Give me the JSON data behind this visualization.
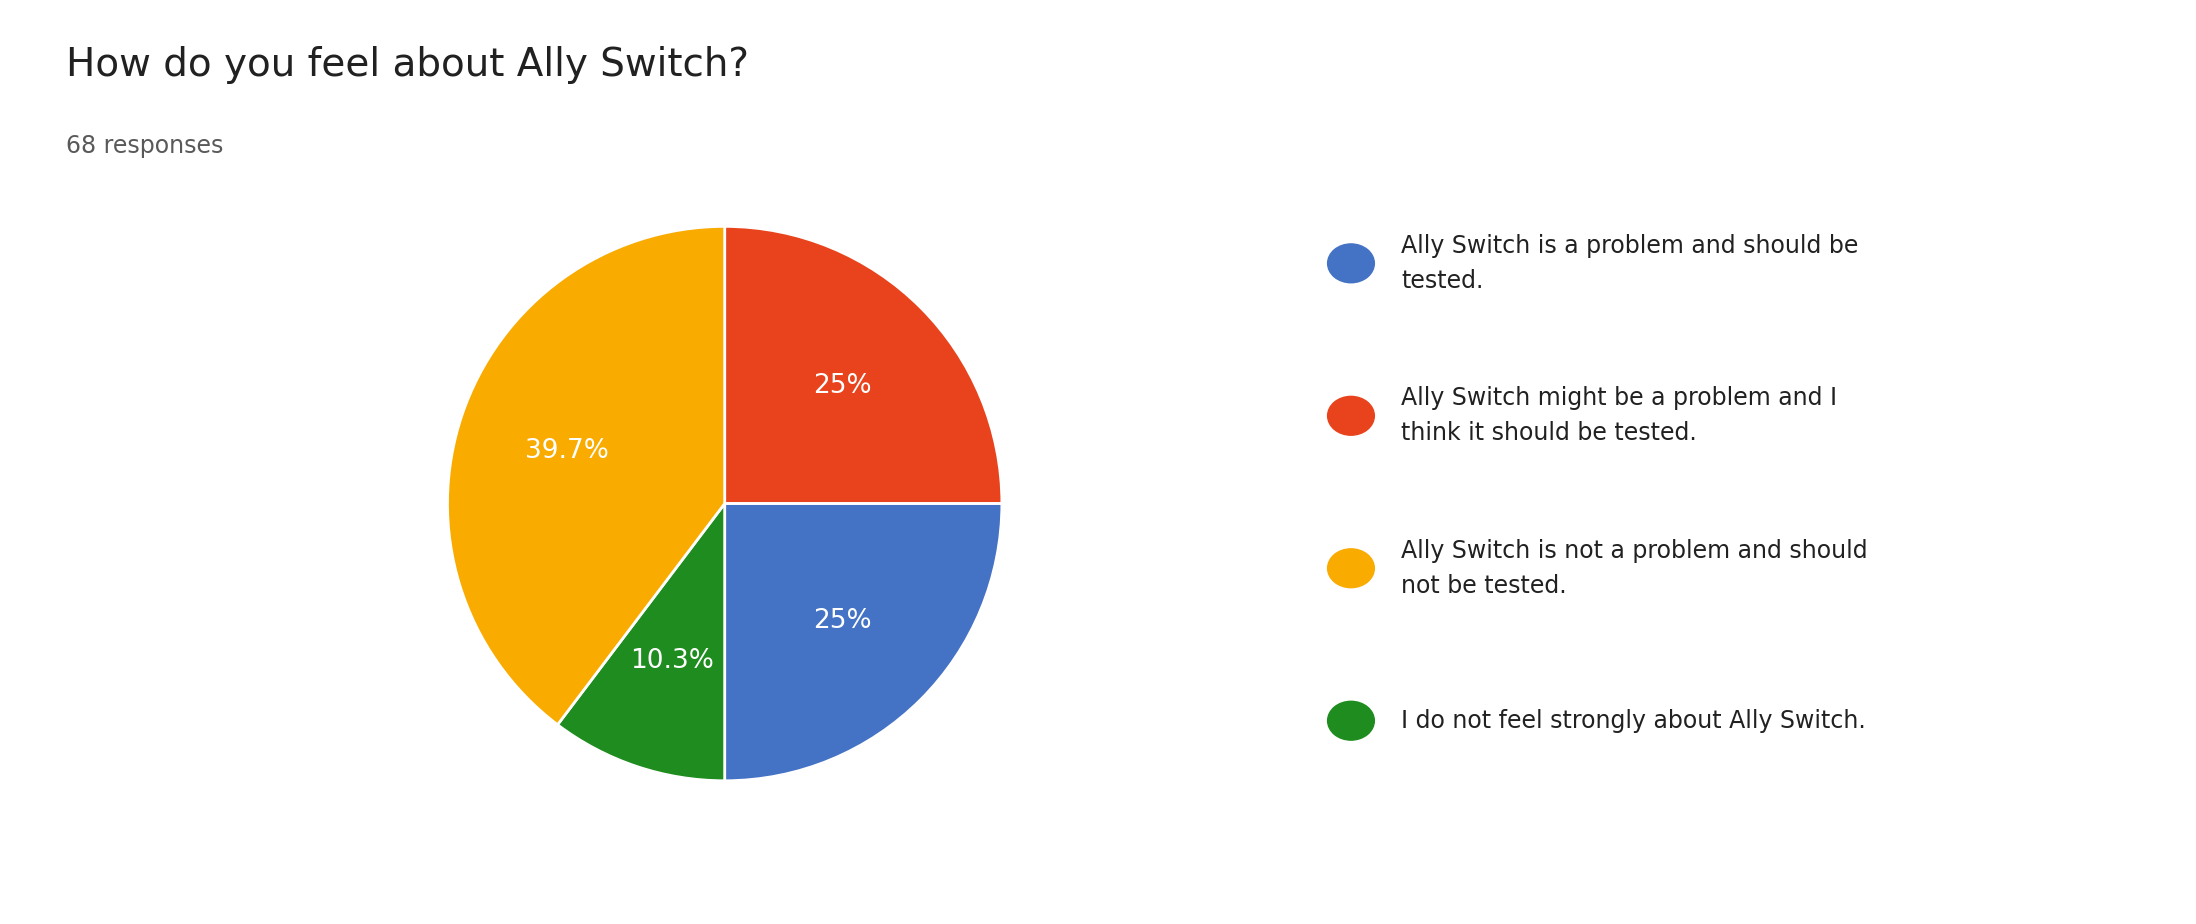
{
  "title": "How do you feel about Ally Switch?",
  "subtitle": "68 responses",
  "slices": [
    39.7,
    10.3,
    25.0,
    25.0
  ],
  "labels": [
    "39.7%",
    "10.3%",
    "25%",
    "25%"
  ],
  "colors": [
    "#F9AB00",
    "#1E8C1E",
    "#4472C4",
    "#E8431C"
  ],
  "legend_labels": [
    "Ally Switch is a problem and should be\ntested.",
    "Ally Switch might be a problem and I\nthink it should be tested.",
    "Ally Switch is not a problem and should\nnot be tested.",
    "I do not feel strongly about Ally Switch."
  ],
  "legend_colors": [
    "#4472C4",
    "#E8431C",
    "#F9AB00",
    "#1E8C1E"
  ],
  "title_fontsize": 28,
  "subtitle_fontsize": 17,
  "label_fontsize": 19,
  "legend_fontsize": 17,
  "background_color": "#ffffff",
  "text_color": "#212121",
  "subtitle_color": "#595959",
  "startangle": 90
}
